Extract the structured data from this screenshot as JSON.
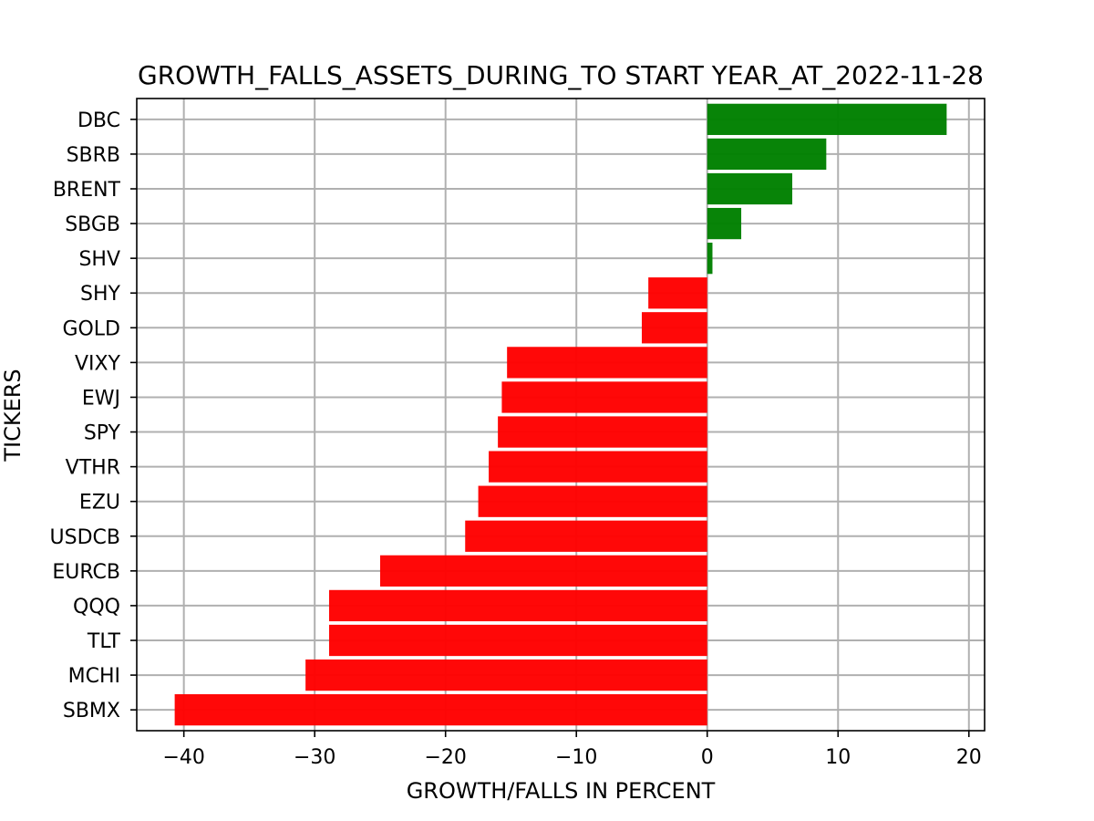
{
  "chart_data": {
    "type": "bar",
    "orientation": "horizontal",
    "title": "GROWTH_FALLS_ASSETS_DURING_TO START YEAR_AT_2022-11-28",
    "xlabel": "GROWTH/FALLS IN PERCENT",
    "ylabel": "TICKERS",
    "categories": [
      "DBC",
      "SBRB",
      "BRENT",
      "SBGB",
      "SHV",
      "SHY",
      "GOLD",
      "VIXY",
      "EWJ",
      "SPY",
      "VTHR",
      "EZU",
      "USDCB",
      "EURCB",
      "QQQ",
      "TLT",
      "MCHI",
      "SBMX"
    ],
    "values": [
      18.3,
      9.1,
      6.5,
      2.6,
      0.4,
      -4.5,
      -5.0,
      -15.3,
      -15.7,
      -16.0,
      -16.7,
      -17.5,
      -18.5,
      -25.0,
      -28.9,
      -28.9,
      -30.7,
      -40.7
    ],
    "colors": {
      "positive": "#008000",
      "negative": "#ff0000"
    },
    "xticks": [
      -40,
      -30,
      -20,
      -10,
      0,
      10,
      20
    ],
    "xtick_labels": [
      "−40",
      "−30",
      "−20",
      "−10",
      "0",
      "10",
      "20"
    ],
    "xlim": [
      -43.6,
      21.2
    ],
    "grid": true,
    "legend": "none"
  }
}
